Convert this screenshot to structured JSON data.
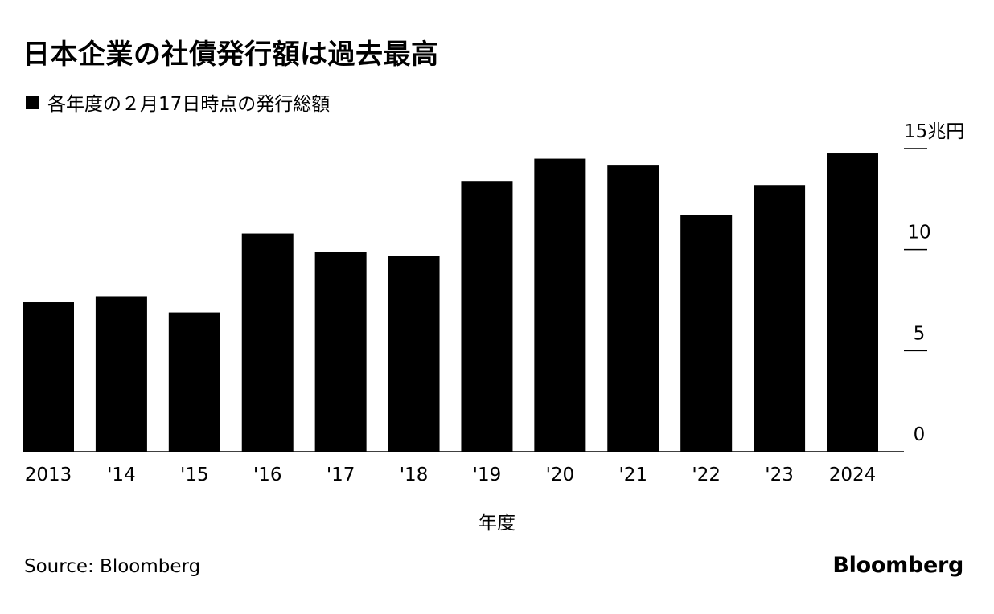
{
  "title": "日本企業の社債発行額は過去最高",
  "subtitle": "各年度の２月17日時点の発行総額",
  "source": "Source: Bloomberg",
  "brand": "Bloomberg",
  "colors": {
    "bar": "#000000",
    "background": "#ffffff",
    "text": "#000000"
  },
  "chart_data": {
    "type": "bar",
    "title": "日本企業の社債発行額は過去最高",
    "subtitle": "各年度の２月17日時点の発行総額",
    "xlabel": "年度",
    "ylabel": "",
    "y_unit_label": "15兆円",
    "ylim": [
      0,
      15
    ],
    "yticks": [
      0,
      5,
      10,
      15
    ],
    "ytick_labels": [
      "0",
      "5",
      "10",
      "15兆円"
    ],
    "y_axis_position": "right",
    "grid": false,
    "categories": [
      "2013",
      "'14",
      "'15",
      "'16",
      "'17",
      "'18",
      "'19",
      "'20",
      "'21",
      "'22",
      "'23",
      "2024"
    ],
    "series": [
      {
        "name": "各年度の２月17日時点の発行総額",
        "values": [
          7.4,
          7.7,
          6.9,
          10.8,
          9.9,
          9.7,
          13.4,
          14.5,
          14.2,
          11.7,
          13.2,
          14.8
        ]
      }
    ]
  }
}
